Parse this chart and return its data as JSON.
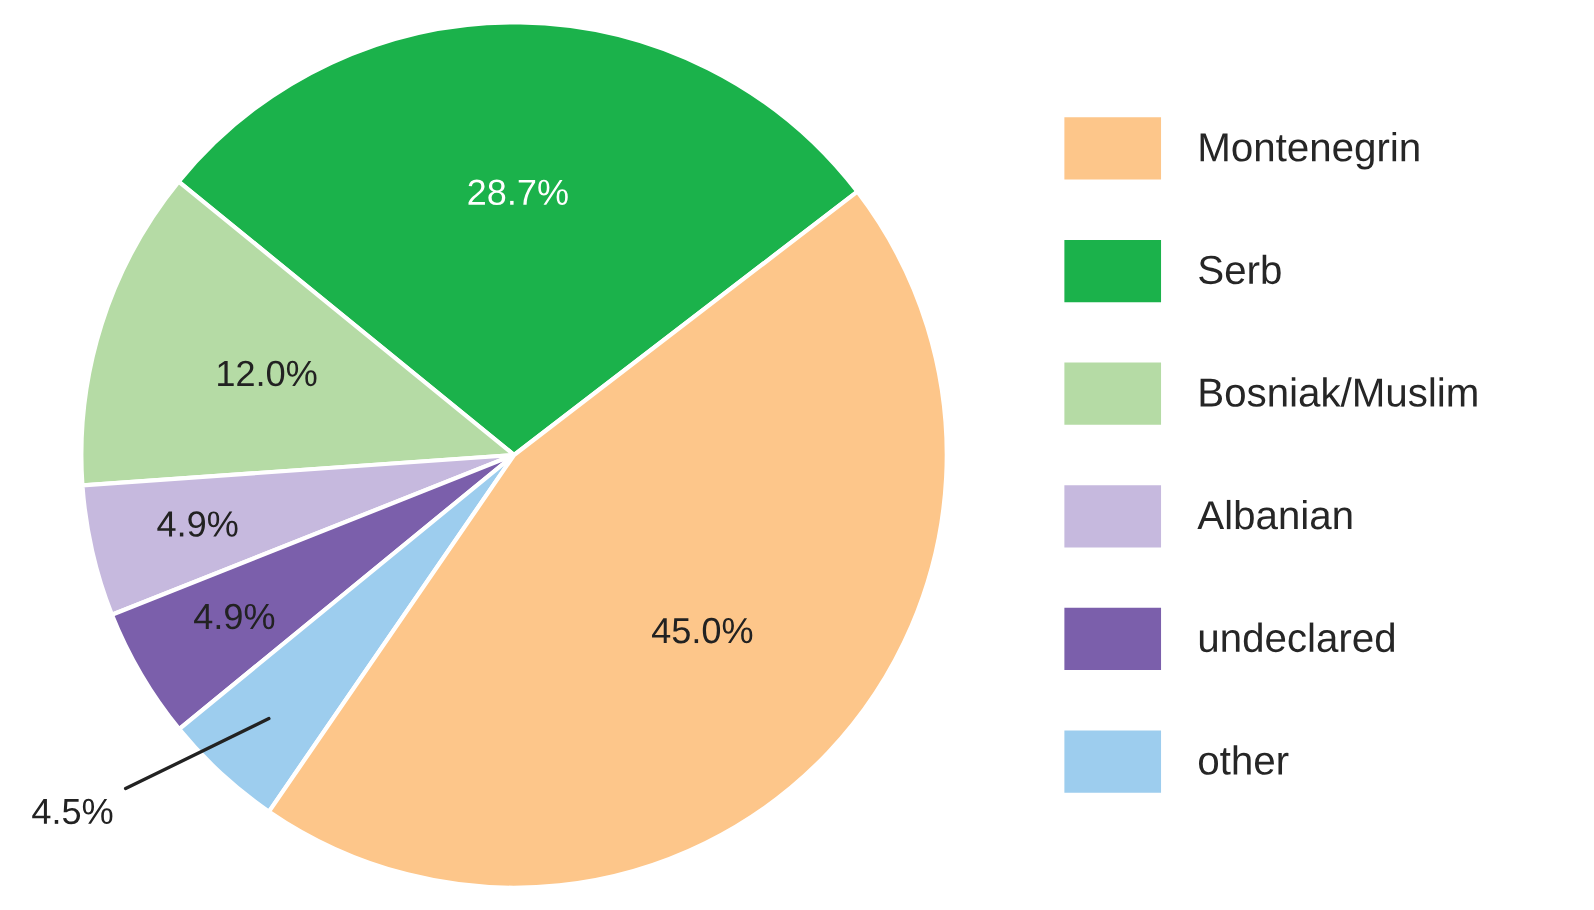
{
  "chart_data": {
    "type": "pie",
    "categories": [
      "Montenegrin",
      "Serb",
      "Bosniak/Muslim",
      "Albanian",
      "undeclared",
      "other"
    ],
    "values": [
      45.0,
      28.7,
      12.0,
      4.9,
      4.9,
      4.5
    ],
    "value_labels": [
      "45.0%",
      "28.7%",
      "12.0%",
      "4.9%",
      "4.9%",
      "4.5%"
    ],
    "colors": [
      "#fdc68a",
      "#1bb24b",
      "#b5dba5",
      "#c6b9de",
      "#7b5fab",
      "#9dcdee"
    ],
    "legend": "right"
  }
}
